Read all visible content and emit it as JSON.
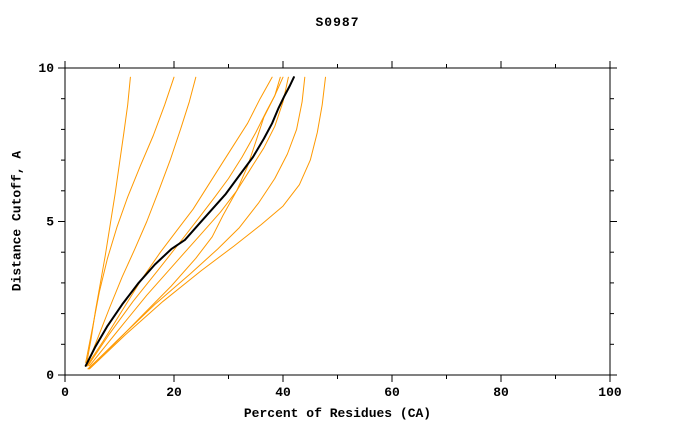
{
  "colors": {
    "background": "#ffffff",
    "frame": "#000000",
    "model_line": "#000000",
    "reference_line": "#ff9900"
  },
  "chart_data": {
    "type": "line",
    "title": "S0987",
    "xlabel": "Percent of Residues (CA)",
    "ylabel": "Distance Cutoff, A",
    "xlim": [
      0,
      100
    ],
    "ylim": [
      0,
      10
    ],
    "x_major_ticks": [
      0,
      20,
      40,
      60,
      80,
      100
    ],
    "x_minor_ticks": [
      10,
      30,
      50,
      70,
      90
    ],
    "y_major_ticks": [
      0,
      5,
      10
    ],
    "y_minor_ticks": [
      1,
      2,
      3,
      4,
      6,
      7,
      8,
      9
    ],
    "grid": false,
    "legend": "none",
    "series": [
      {
        "name": "orange-1",
        "color": "#ff9900",
        "width": 1,
        "points": [
          [
            4.0,
            0.4
          ],
          [
            4.8,
            1.2
          ],
          [
            5.6,
            2.1
          ],
          [
            6.5,
            3.0
          ],
          [
            7.4,
            3.9
          ],
          [
            8.3,
            4.9
          ],
          [
            9.2,
            5.9
          ],
          [
            10.0,
            6.9
          ],
          [
            10.8,
            7.9
          ],
          [
            11.5,
            8.8
          ],
          [
            12.0,
            9.7
          ]
        ]
      },
      {
        "name": "orange-2",
        "color": "#ff9900",
        "width": 1,
        "points": [
          [
            3.8,
            0.4
          ],
          [
            5.0,
            1.5
          ],
          [
            6.3,
            2.7
          ],
          [
            7.8,
            3.8
          ],
          [
            9.5,
            4.8
          ],
          [
            11.5,
            5.8
          ],
          [
            13.8,
            6.8
          ],
          [
            16.2,
            7.8
          ],
          [
            18.3,
            8.8
          ],
          [
            20.0,
            9.7
          ]
        ]
      },
      {
        "name": "orange-3",
        "color": "#ff9900",
        "width": 1,
        "points": [
          [
            4.0,
            0.3
          ],
          [
            6.0,
            1.2
          ],
          [
            8.2,
            2.2
          ],
          [
            10.5,
            3.2
          ],
          [
            12.8,
            4.1
          ],
          [
            15.0,
            5.0
          ],
          [
            17.2,
            6.0
          ],
          [
            19.3,
            7.0
          ],
          [
            21.2,
            8.0
          ],
          [
            22.8,
            8.9
          ],
          [
            24.0,
            9.7
          ]
        ]
      },
      {
        "name": "orange-4",
        "color": "#ff9900",
        "width": 1,
        "points": [
          [
            4.0,
            0.3
          ],
          [
            7.0,
            1.1
          ],
          [
            10.5,
            2.1
          ],
          [
            14.0,
            3.1
          ],
          [
            17.5,
            4.0
          ],
          [
            20.5,
            4.7
          ],
          [
            23.5,
            5.4
          ],
          [
            26.0,
            6.1
          ],
          [
            28.5,
            6.8
          ],
          [
            31.0,
            7.5
          ],
          [
            33.5,
            8.2
          ],
          [
            35.8,
            9.0
          ],
          [
            38.0,
            9.7
          ]
        ]
      },
      {
        "name": "orange-5",
        "color": "#ff9900",
        "width": 1,
        "points": [
          [
            4.2,
            0.3
          ],
          [
            8.0,
            1.3
          ],
          [
            12.5,
            2.4
          ],
          [
            17.0,
            3.4
          ],
          [
            21.0,
            4.3
          ],
          [
            24.5,
            5.1
          ],
          [
            27.5,
            5.8
          ],
          [
            30.0,
            6.4
          ],
          [
            32.5,
            7.1
          ],
          [
            35.0,
            7.9
          ],
          [
            37.0,
            8.6
          ],
          [
            38.5,
            9.1
          ],
          [
            40.0,
            9.7
          ]
        ]
      },
      {
        "name": "orange-6",
        "color": "#ff9900",
        "width": 1,
        "points": [
          [
            4.5,
            0.3
          ],
          [
            9.5,
            1.4
          ],
          [
            15.0,
            2.6
          ],
          [
            20.5,
            3.7
          ],
          [
            25.0,
            4.6
          ],
          [
            28.5,
            5.3
          ],
          [
            31.5,
            6.0
          ],
          [
            34.0,
            6.7
          ],
          [
            36.5,
            7.4
          ],
          [
            38.5,
            8.1
          ],
          [
            40.0,
            8.9
          ],
          [
            41.0,
            9.7
          ]
        ]
      },
      {
        "name": "orange-7",
        "color": "#ff9900",
        "width": 1,
        "points": [
          [
            4.3,
            0.2
          ],
          [
            10.0,
            1.2
          ],
          [
            16.5,
            2.3
          ],
          [
            23.0,
            3.3
          ],
          [
            28.0,
            4.1
          ],
          [
            32.0,
            4.8
          ],
          [
            35.5,
            5.6
          ],
          [
            38.5,
            6.4
          ],
          [
            40.8,
            7.2
          ],
          [
            42.5,
            8.0
          ],
          [
            43.5,
            8.9
          ],
          [
            44.0,
            9.7
          ]
        ]
      },
      {
        "name": "orange-8",
        "color": "#ff9900",
        "width": 1,
        "points": [
          [
            4.5,
            0.2
          ],
          [
            11.0,
            1.3
          ],
          [
            18.0,
            2.4
          ],
          [
            25.0,
            3.4
          ],
          [
            31.0,
            4.2
          ],
          [
            36.0,
            4.9
          ],
          [
            40.0,
            5.5
          ],
          [
            43.0,
            6.2
          ],
          [
            45.0,
            7.0
          ],
          [
            46.3,
            7.9
          ],
          [
            47.2,
            8.8
          ],
          [
            47.8,
            9.7
          ]
        ]
      },
      {
        "name": "orange-9",
        "color": "#ff9900",
        "width": 1,
        "points": [
          [
            4.2,
            0.2
          ],
          [
            9.0,
            1.0
          ],
          [
            14.5,
            2.0
          ],
          [
            19.5,
            2.9
          ],
          [
            24.0,
            3.8
          ],
          [
            27.0,
            4.5
          ],
          [
            29.0,
            5.2
          ],
          [
            31.5,
            6.0
          ],
          [
            33.5,
            6.8
          ],
          [
            35.0,
            7.6
          ],
          [
            36.5,
            8.4
          ],
          [
            38.5,
            9.1
          ],
          [
            39.5,
            9.7
          ]
        ]
      },
      {
        "name": "model-black",
        "color": "#000000",
        "width": 2,
        "points": [
          [
            3.8,
            0.3
          ],
          [
            5.5,
            0.9
          ],
          [
            7.8,
            1.6
          ],
          [
            10.5,
            2.3
          ],
          [
            13.5,
            3.0
          ],
          [
            16.5,
            3.6
          ],
          [
            19.5,
            4.1
          ],
          [
            22.0,
            4.4
          ],
          [
            24.5,
            4.9
          ],
          [
            27.0,
            5.4
          ],
          [
            29.5,
            5.9
          ],
          [
            32.0,
            6.5
          ],
          [
            34.5,
            7.1
          ],
          [
            36.5,
            7.7
          ],
          [
            38.0,
            8.2
          ],
          [
            39.2,
            8.7
          ],
          [
            40.3,
            9.1
          ],
          [
            41.2,
            9.4
          ],
          [
            42.0,
            9.7
          ]
        ]
      }
    ]
  }
}
